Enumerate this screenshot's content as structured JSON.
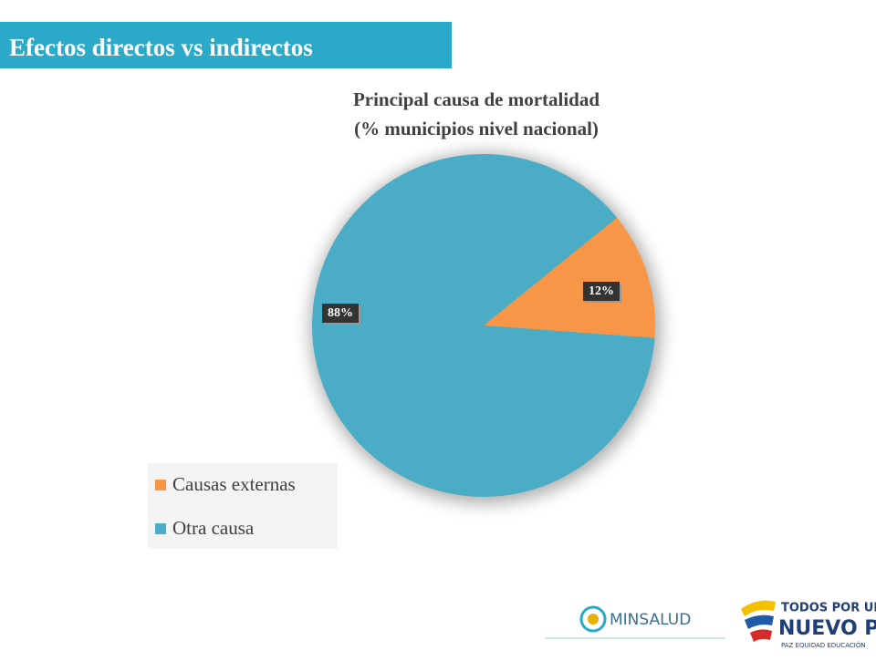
{
  "header": {
    "title": "Efectos directos vs indirectos"
  },
  "chart_data": {
    "type": "pie",
    "title": "Principal causa de mortalidad",
    "subtitle": "(% municipios nivel nacional)",
    "categories": [
      "Causas externas",
      "Otra causa"
    ],
    "values": [
      12,
      88
    ],
    "value_labels": [
      "12%",
      "88%"
    ],
    "colors": [
      "#f79646",
      "#4bacc6"
    ]
  },
  "footer": {
    "ministry": "MINSALUD",
    "slogan_top": "TODOS POR UN",
    "slogan_main": "NUEVO PAÍS",
    "slogan_sub": "PAZ  EQUIDAD  EDUCACIÓN"
  }
}
